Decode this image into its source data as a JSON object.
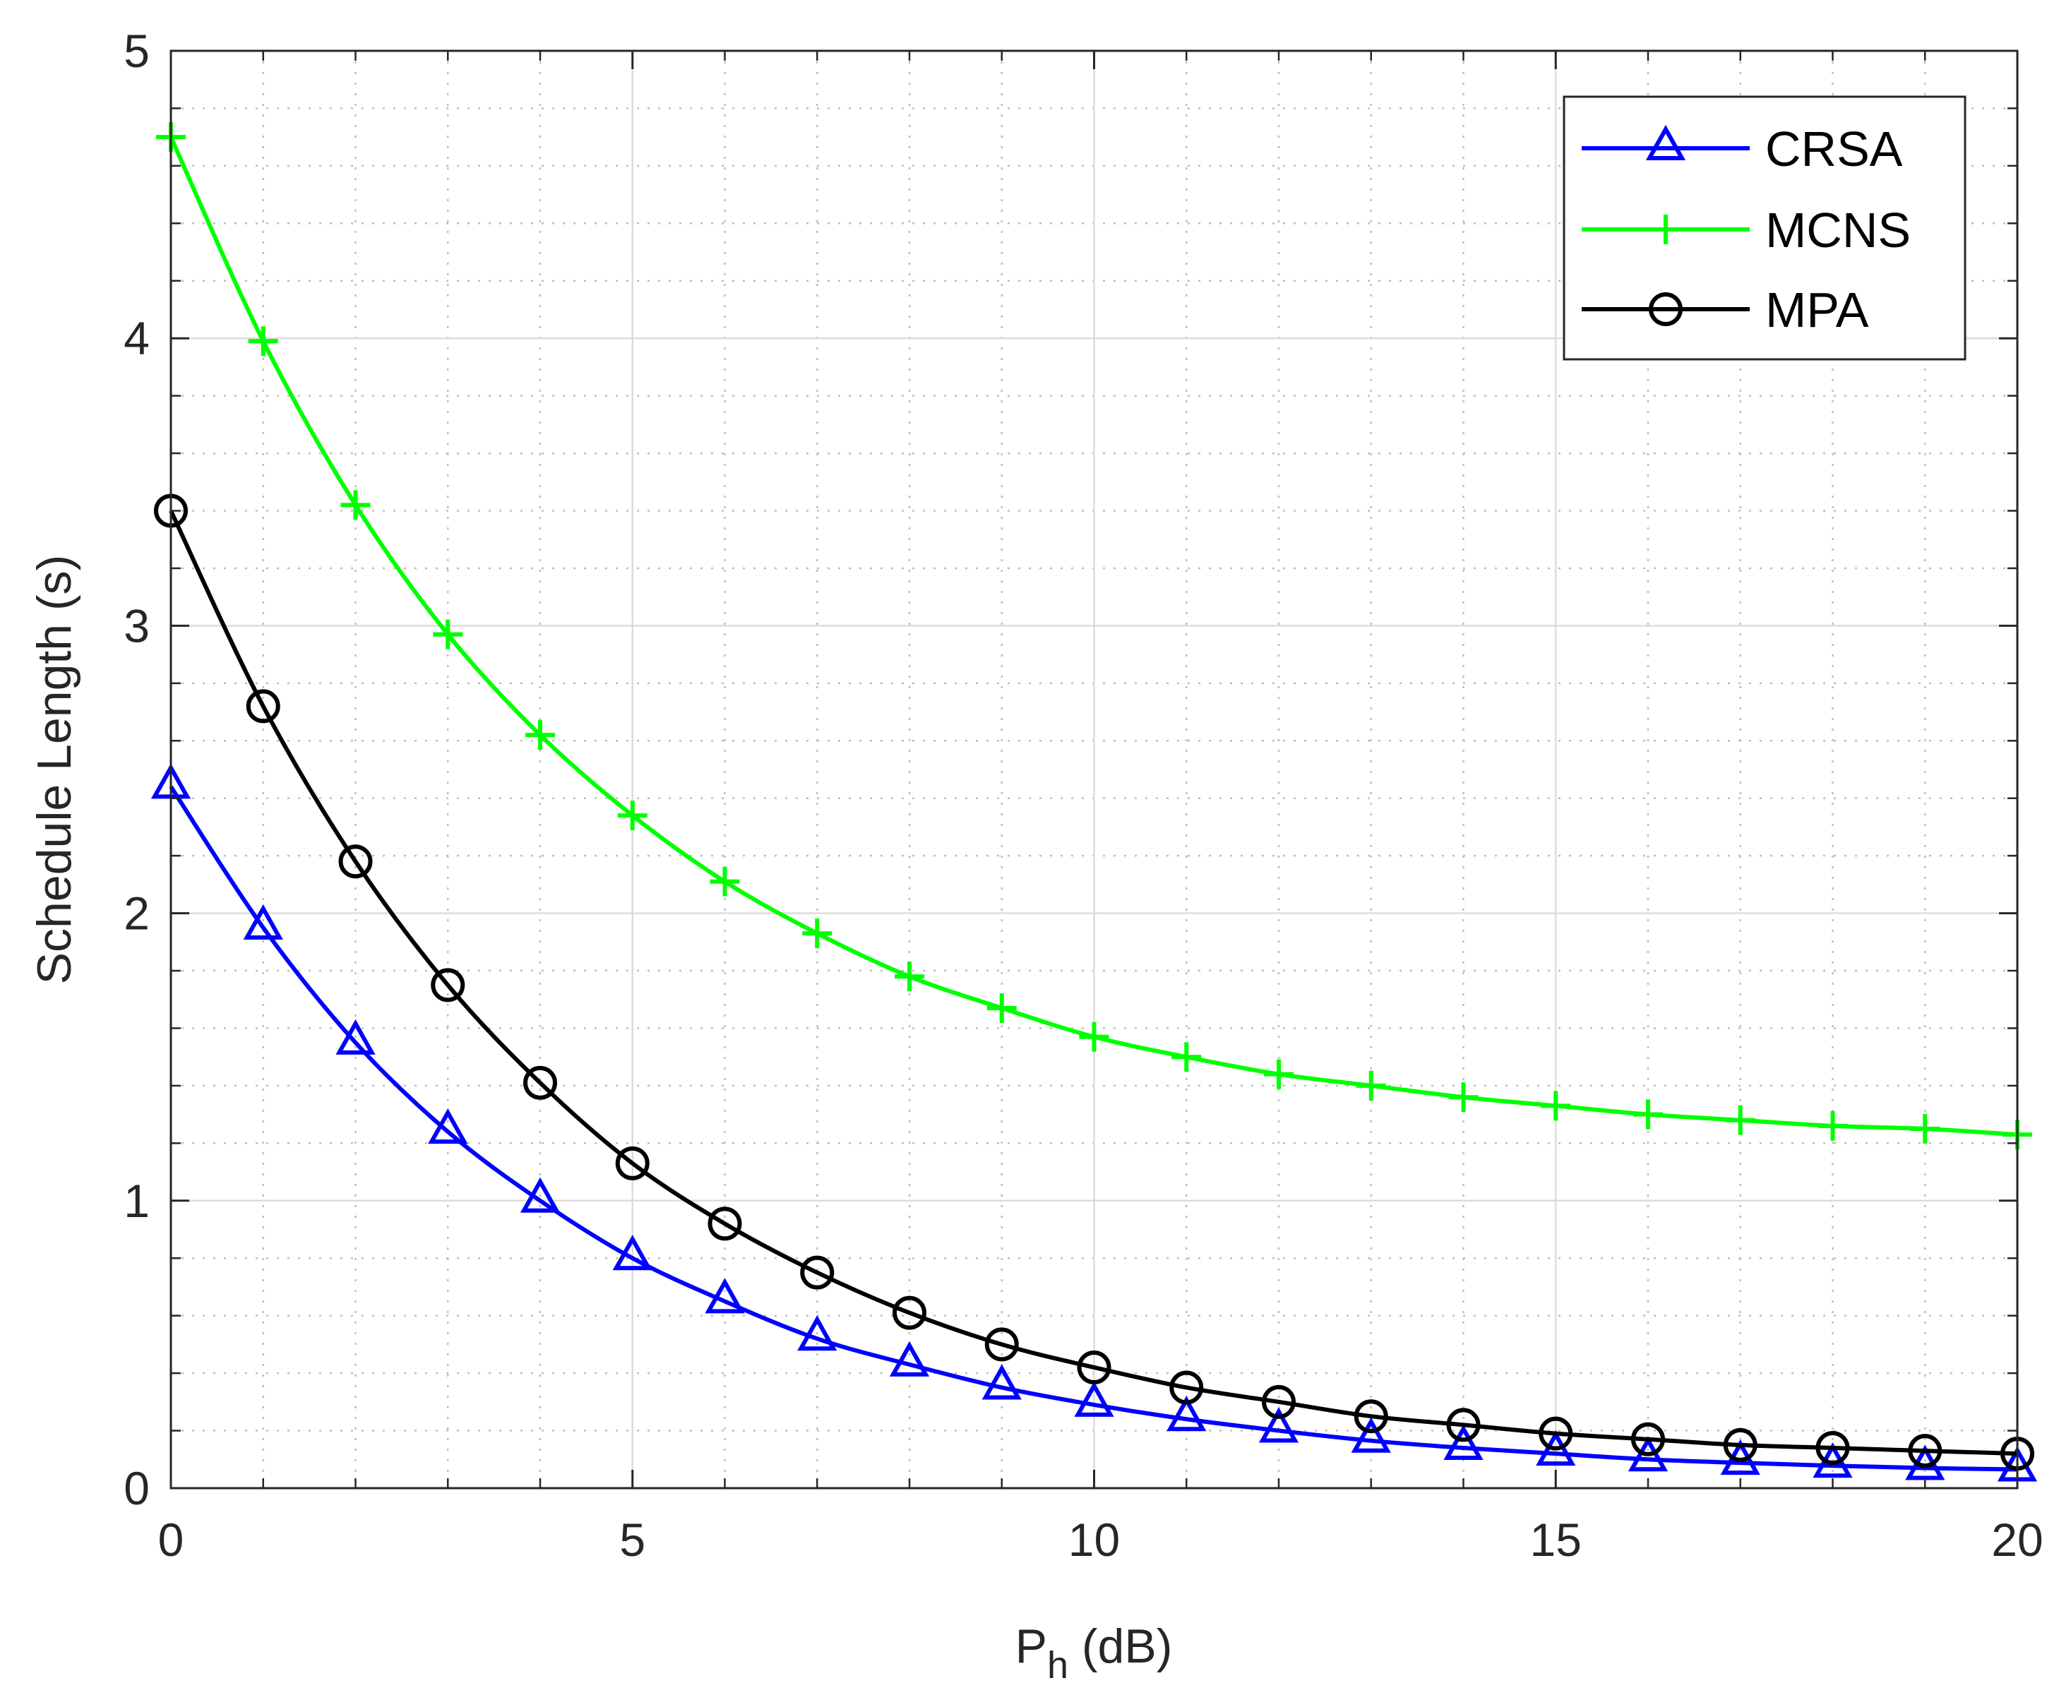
{
  "chart_data": {
    "type": "line",
    "xlabel": "P",
    "xlabel_sub": "h",
    "xlabel_suffix": " (dB)",
    "ylabel": "Schedule Length (s)",
    "xlim": [
      0,
      20
    ],
    "ylim": [
      0,
      5
    ],
    "xticks": [
      0,
      5,
      10,
      15,
      20
    ],
    "yticks": [
      0,
      1,
      2,
      3,
      4,
      5
    ],
    "xtick_labels": [
      "0",
      "5",
      "10",
      "15",
      "20"
    ],
    "ytick_labels": [
      "0",
      "1",
      "2",
      "3",
      "4",
      "5"
    ],
    "grid": true,
    "minor_grid": true,
    "legend_position": "top-right",
    "x": [
      0,
      1,
      2,
      3,
      4,
      5,
      6,
      7,
      8,
      9,
      10,
      11,
      12,
      13,
      14,
      15,
      16,
      17,
      18,
      19,
      20
    ],
    "series": [
      {
        "name": "CRSA",
        "color": "#0000ff",
        "marker": "triangle",
        "values": [
          2.44,
          1.95,
          1.55,
          1.24,
          1.0,
          0.8,
          0.65,
          0.52,
          0.43,
          0.35,
          0.29,
          0.24,
          0.2,
          0.165,
          0.14,
          0.12,
          0.1,
          0.088,
          0.078,
          0.07,
          0.065
        ]
      },
      {
        "name": "MCNS",
        "color": "#00ff00",
        "marker": "plus",
        "values": [
          4.7,
          3.99,
          3.42,
          2.97,
          2.62,
          2.34,
          2.11,
          1.93,
          1.78,
          1.67,
          1.57,
          1.5,
          1.44,
          1.4,
          1.36,
          1.33,
          1.3,
          1.28,
          1.26,
          1.25,
          1.23
        ]
      },
      {
        "name": "MPA",
        "color": "#000000",
        "marker": "circle",
        "values": [
          3.4,
          2.72,
          2.18,
          1.75,
          1.41,
          1.13,
          0.92,
          0.75,
          0.61,
          0.5,
          0.42,
          0.35,
          0.3,
          0.25,
          0.22,
          0.19,
          0.17,
          0.15,
          0.14,
          0.13,
          0.12
        ]
      }
    ]
  }
}
